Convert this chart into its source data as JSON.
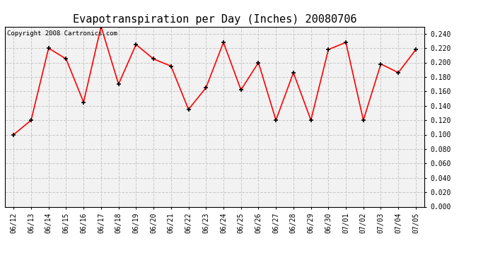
{
  "title": "Evapotranspiration per Day (Inches) 20080706",
  "copyright_text": "Copyright 2008 Cartronics.com",
  "dates": [
    "06/12",
    "06/13",
    "06/14",
    "06/15",
    "06/16",
    "06/17",
    "06/18",
    "06/19",
    "06/20",
    "06/21",
    "06/22",
    "06/23",
    "06/24",
    "06/25",
    "06/26",
    "06/27",
    "06/28",
    "06/29",
    "06/30",
    "07/01",
    "07/02",
    "07/03",
    "07/04",
    "07/05"
  ],
  "values": [
    0.1,
    0.12,
    0.22,
    0.205,
    0.145,
    0.25,
    0.17,
    0.225,
    0.205,
    0.195,
    0.135,
    0.165,
    0.228,
    0.162,
    0.2,
    0.12,
    0.186,
    0.12,
    0.218,
    0.228,
    0.12,
    0.198,
    0.186,
    0.218
  ],
  "line_color": "#ff0000",
  "marker": "+",
  "marker_color": "#000000",
  "bg_color": "#ffffff",
  "plot_bg_color": "#f2f2f2",
  "grid_color": "#c8c8c8",
  "ylim": [
    0.0,
    0.25
  ],
  "ytick_step": 0.02,
  "title_fontsize": 11,
  "tick_fontsize": 7,
  "copyright_fontsize": 6.5
}
